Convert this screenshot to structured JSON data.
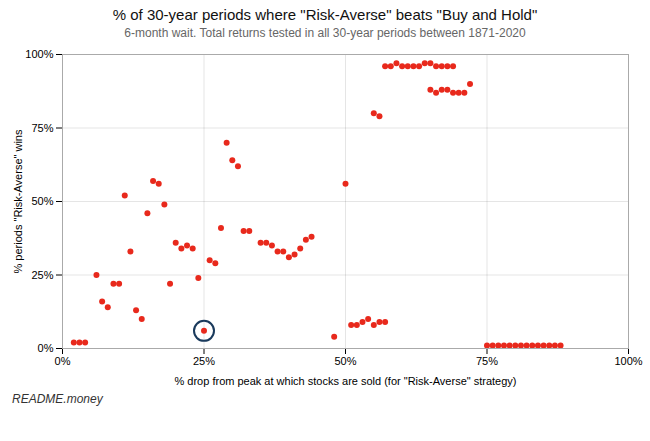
{
  "chart_data": {
    "type": "scatter",
    "title": "% of 30-year periods where \"Risk-Averse\" beats \"Buy and Hold\"",
    "subtitle": "6-month wait. Total returns tested in all 30-year periods between 1871-2020",
    "xlabel": "% drop from peak at which stocks are sold (for \"Risk-Averse\" strategy)",
    "ylabel": "% periods \"Risk-Averse\" wins",
    "color": "#e8291c",
    "x": [
      0.02,
      0.03,
      0.04,
      0.06,
      0.07,
      0.08,
      0.09,
      0.1,
      0.11,
      0.12,
      0.13,
      0.14,
      0.15,
      0.16,
      0.17,
      0.18,
      0.19,
      0.2,
      0.21,
      0.22,
      0.23,
      0.24,
      0.25,
      0.26,
      0.27,
      0.28,
      0.29,
      0.3,
      0.31,
      0.32,
      0.33,
      0.35,
      0.36,
      0.37,
      0.38,
      0.39,
      0.4,
      0.41,
      0.42,
      0.43,
      0.44,
      0.48,
      0.5,
      0.51,
      0.52,
      0.53,
      0.54,
      0.55,
      0.56,
      0.57,
      0.55,
      0.56,
      0.57,
      0.58,
      0.59,
      0.6,
      0.61,
      0.62,
      0.63,
      0.64,
      0.65,
      0.66,
      0.67,
      0.68,
      0.69,
      0.65,
      0.66,
      0.67,
      0.68,
      0.69,
      0.7,
      0.71,
      0.72,
      0.75,
      0.76,
      0.77,
      0.78,
      0.79,
      0.8,
      0.81,
      0.82,
      0.83,
      0.84,
      0.85,
      0.86,
      0.87,
      0.88
    ],
    "values": [
      0.02,
      0.02,
      0.02,
      0.25,
      0.16,
      0.14,
      0.22,
      0.22,
      0.52,
      0.33,
      0.13,
      0.1,
      0.46,
      0.57,
      0.56,
      0.49,
      0.22,
      0.36,
      0.34,
      0.35,
      0.34,
      0.24,
      0.06,
      0.3,
      0.29,
      0.41,
      0.7,
      0.64,
      0.62,
      0.4,
      0.4,
      0.36,
      0.36,
      0.35,
      0.33,
      0.33,
      0.31,
      0.32,
      0.34,
      0.37,
      0.38,
      0.04,
      0.56,
      0.08,
      0.08,
      0.09,
      0.1,
      0.08,
      0.09,
      0.09,
      0.8,
      0.79,
      0.96,
      0.96,
      0.97,
      0.96,
      0.96,
      0.96,
      0.96,
      0.97,
      0.97,
      0.96,
      0.96,
      0.96,
      0.96,
      0.88,
      0.87,
      0.88,
      0.88,
      0.87,
      0.87,
      0.87,
      0.9,
      0.01,
      0.01,
      0.01,
      0.01,
      0.01,
      0.01,
      0.01,
      0.01,
      0.01,
      0.01,
      0.01,
      0.01,
      0.01,
      0.01
    ],
    "xlim": [
      0,
      1.0
    ],
    "ylim": [
      0,
      1.0
    ],
    "xticks": [
      {
        "value": 0,
        "label": "0%"
      },
      {
        "value": 0.25,
        "label": "25%"
      },
      {
        "value": 0.5,
        "label": "50%"
      },
      {
        "value": 0.75,
        "label": "75%"
      },
      {
        "value": 1.0,
        "label": "100%"
      }
    ],
    "yticks": [
      {
        "value": 0,
        "label": "0%"
      },
      {
        "value": 0.25,
        "label": "25%"
      },
      {
        "value": 0.5,
        "label": "50%"
      },
      {
        "value": 0.75,
        "label": "75%"
      },
      {
        "value": 1.0,
        "label": "100%"
      }
    ],
    "grid": true,
    "annotations": [
      {
        "text": "README.money"
      },
      {
        "x": 0.25,
        "y": 0.06,
        "marker": "circle",
        "color": "#1a3a5c"
      }
    ]
  }
}
